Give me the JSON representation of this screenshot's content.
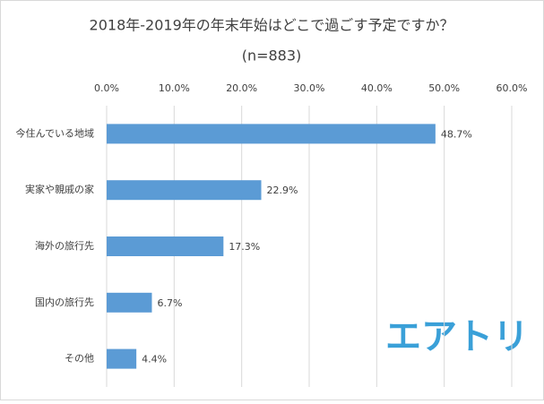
{
  "chart_data": {
    "type": "bar",
    "orientation": "horizontal",
    "title": "2018年-2019年の年末年始はどこで過ごす予定ですか？",
    "subtitle": "(n=883)",
    "categories": [
      "今住んでいる地域",
      "実家や親戚の家",
      "海外の旅行先",
      "国内の旅行先",
      "その他"
    ],
    "values": [
      48.7,
      22.9,
      17.3,
      6.7,
      4.4
    ],
    "value_labels": [
      "48.7%",
      "22.9%",
      "17.3%",
      "6.7%",
      "4.4%"
    ],
    "color": "#5b9bd5",
    "xlim": [
      0,
      60
    ],
    "xticks": [
      {
        "value": 0,
        "label": "0.0%"
      },
      {
        "value": 10,
        "label": "10.0%"
      },
      {
        "value": 20,
        "label": "20.0%"
      },
      {
        "value": 30,
        "label": "30.0%"
      },
      {
        "value": 40,
        "label": "40.0%"
      },
      {
        "value": 50,
        "label": "50.0%"
      },
      {
        "value": 60,
        "label": "60.0%"
      }
    ],
    "grid": true
  },
  "logo": "エアトリ"
}
